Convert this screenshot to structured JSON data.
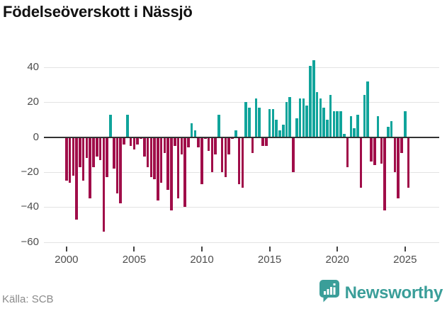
{
  "title": "Födelseöverskott i Nässjö",
  "source": "Källa: SCB",
  "logo": {
    "text": "Newsworthy"
  },
  "colors": {
    "positive": "#10a49b",
    "negative": "#a00d49",
    "zero_axis": "#333333",
    "grid": "#e3e3e3",
    "title": "#111111",
    "tick_label": "#4d4d4d",
    "source_label": "#8a8a8a",
    "logo": "#3a9e99"
  },
  "chart_data": {
    "type": "bar",
    "title": "Födelseöverskott i Nässjö",
    "xlabel": "",
    "ylabel": "",
    "frequency": "quarterly",
    "start_year": 2000,
    "start_quarter": 1,
    "end_year": 2025,
    "end_quarter": 2,
    "ylim": [
      -60,
      46
    ],
    "grid": true,
    "legend": "none",
    "yticks": [
      40,
      20,
      0,
      -20,
      -40,
      -60
    ],
    "ytick_labels": [
      "40",
      "20",
      "0",
      "−20",
      "−40",
      "−60"
    ],
    "xticks": [
      2000,
      2005,
      2010,
      2015,
      2020,
      2025
    ],
    "xtick_labels": [
      "2000",
      "2005",
      "2010",
      "2015",
      "2020",
      "2025"
    ],
    "series": [
      {
        "name": "Födelseöverskott",
        "values": [
          -25,
          -26,
          -22,
          -47,
          -17,
          -25,
          -12,
          -35,
          -17,
          -11,
          -13,
          -54,
          -23,
          13,
          -18,
          -32,
          -38,
          -4,
          13,
          -5,
          -7,
          -4,
          -1,
          -11,
          -17,
          -23,
          -24,
          -36,
          -26,
          -9,
          -30,
          -42,
          -5,
          -35,
          -10,
          -40,
          -6,
          8,
          4,
          -6,
          -27,
          -1,
          -8,
          -20,
          -10,
          13,
          -20,
          -23,
          -10,
          -1,
          4,
          -27,
          -29,
          20,
          17,
          -9,
          22,
          17,
          -5,
          -5,
          16,
          16,
          10,
          4,
          7,
          20,
          23,
          -20,
          11,
          22,
          22,
          18,
          41,
          44,
          26,
          22,
          17,
          10,
          24,
          15,
          15,
          15,
          2,
          -17,
          12,
          5,
          13,
          -29,
          24,
          32,
          -14,
          -16,
          12,
          -15,
          -42,
          6,
          9,
          -20,
          -35,
          -9,
          15,
          -29
        ]
      }
    ]
  }
}
